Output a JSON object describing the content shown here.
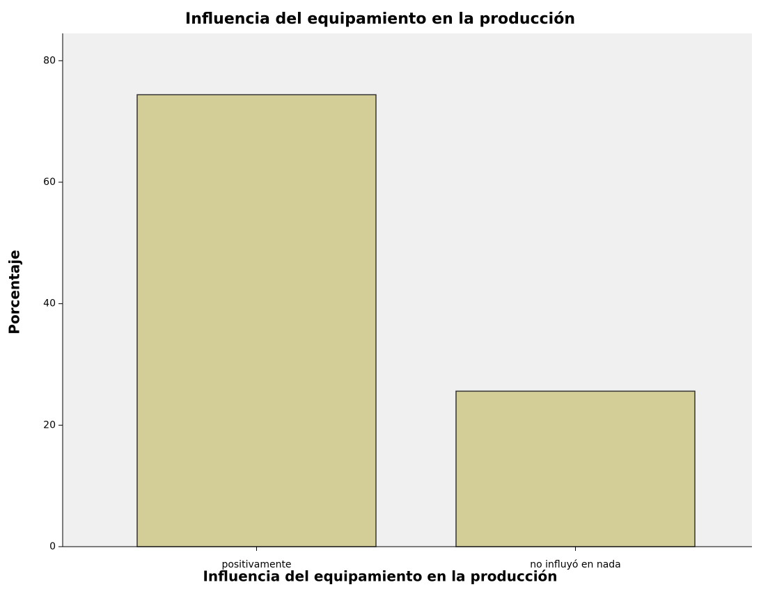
{
  "chart_data": {
    "type": "bar",
    "title": "Influencia del equipamiento en la producción",
    "x_label": "Influencia del equipamiento en la producción",
    "y_label": "Porcentaje",
    "categories": [
      "positivamente",
      "no influyó en nada"
    ],
    "values": [
      74.4,
      25.6
    ],
    "color": "#d3cd97",
    "ylim": [
      0,
      84.5
    ],
    "yticks": [
      0,
      20,
      40,
      60,
      80
    ],
    "grid": false
  }
}
